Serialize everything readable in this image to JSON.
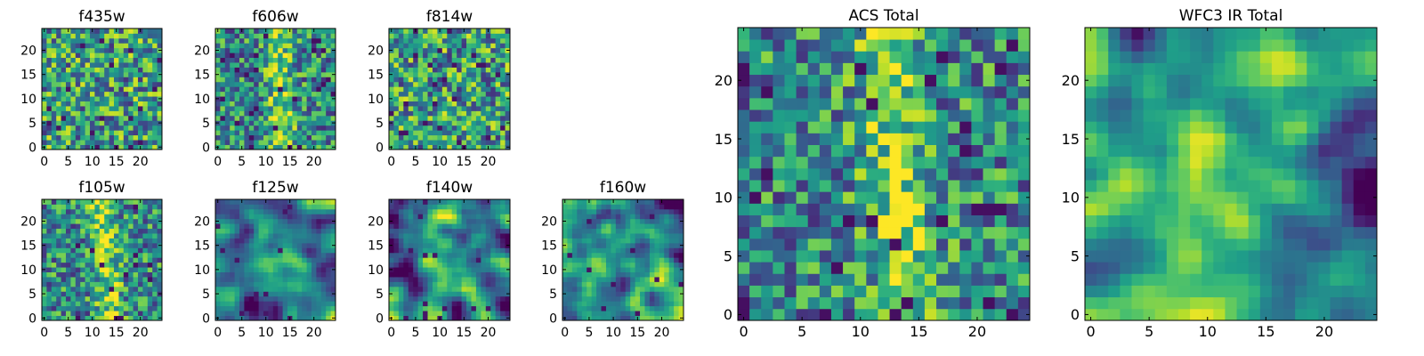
{
  "chart_data": [
    {
      "type": "heatmap",
      "title": "f435w",
      "xticks": [
        "0",
        "5",
        "10",
        "15",
        "20"
      ],
      "yticks": [
        "0",
        "5",
        "10",
        "15",
        "20"
      ],
      "xlim": [
        0,
        24
      ],
      "ylim": [
        0,
        24
      ],
      "grid": false,
      "colormap": "viridis",
      "structure": "noise"
    },
    {
      "type": "heatmap",
      "title": "f606w",
      "xticks": [
        "0",
        "5",
        "10",
        "15",
        "20"
      ],
      "yticks": [
        "0",
        "5",
        "10",
        "15",
        "20"
      ],
      "xlim": [
        0,
        24
      ],
      "ylim": [
        0,
        24
      ],
      "grid": false,
      "colormap": "viridis",
      "structure": "vertical-band"
    },
    {
      "type": "heatmap",
      "title": "f814w",
      "xticks": [
        "0",
        "5",
        "10",
        "15",
        "20"
      ],
      "yticks": [
        "0",
        "5",
        "10",
        "15",
        "20"
      ],
      "xlim": [
        0,
        24
      ],
      "ylim": [
        0,
        24
      ],
      "grid": false,
      "colormap": "viridis",
      "structure": "noise"
    },
    {
      "type": "heatmap",
      "title": "f105w",
      "xticks": [
        "0",
        "5",
        "10",
        "15",
        "20"
      ],
      "yticks": [
        "0",
        "5",
        "10",
        "15",
        "20"
      ],
      "xlim": [
        0,
        24
      ],
      "ylim": [
        0,
        24
      ],
      "grid": false,
      "colormap": "viridis",
      "structure": "vertical-band"
    },
    {
      "type": "heatmap",
      "title": "f125w",
      "xticks": [
        "0",
        "5",
        "10",
        "15",
        "20"
      ],
      "yticks": [
        "0",
        "5",
        "10",
        "15",
        "20"
      ],
      "xlim": [
        0,
        24
      ],
      "ylim": [
        0,
        24
      ],
      "grid": false,
      "colormap": "viridis",
      "structure": "smooth"
    },
    {
      "type": "heatmap",
      "title": "f140w",
      "xticks": [
        "0",
        "5",
        "10",
        "15",
        "20"
      ],
      "yticks": [
        "0",
        "5",
        "10",
        "15",
        "20"
      ],
      "xlim": [
        0,
        24
      ],
      "ylim": [
        0,
        24
      ],
      "grid": false,
      "colormap": "viridis",
      "structure": "smooth"
    },
    {
      "type": "heatmap",
      "title": "f160w",
      "xticks": [
        "0",
        "5",
        "10",
        "15",
        "20"
      ],
      "yticks": [
        "0",
        "5",
        "10",
        "15",
        "20"
      ],
      "xlim": [
        0,
        24
      ],
      "ylim": [
        0,
        24
      ],
      "grid": false,
      "colormap": "viridis",
      "structure": "smooth-blob"
    },
    {
      "type": "heatmap",
      "title": "ACS Total",
      "xticks": [
        "0",
        "5",
        "10",
        "15",
        "20"
      ],
      "yticks": [
        "0",
        "5",
        "10",
        "15",
        "20"
      ],
      "xlim": [
        0,
        24
      ],
      "ylim": [
        0,
        24
      ],
      "grid": false,
      "colormap": "viridis",
      "structure": "vertical-band"
    },
    {
      "type": "heatmap",
      "title": "WFC3 IR Total",
      "xticks": [
        "0",
        "5",
        "10",
        "15",
        "20"
      ],
      "yticks": [
        "0",
        "5",
        "10",
        "15",
        "20"
      ],
      "xlim": [
        0,
        24
      ],
      "ylim": [
        0,
        24
      ],
      "grid": false,
      "colormap": "viridis",
      "structure": "smooth-band"
    }
  ],
  "colors": {
    "low": "#440154",
    "mid": "#21908d",
    "high": "#fde725",
    "frame": "#000000"
  }
}
